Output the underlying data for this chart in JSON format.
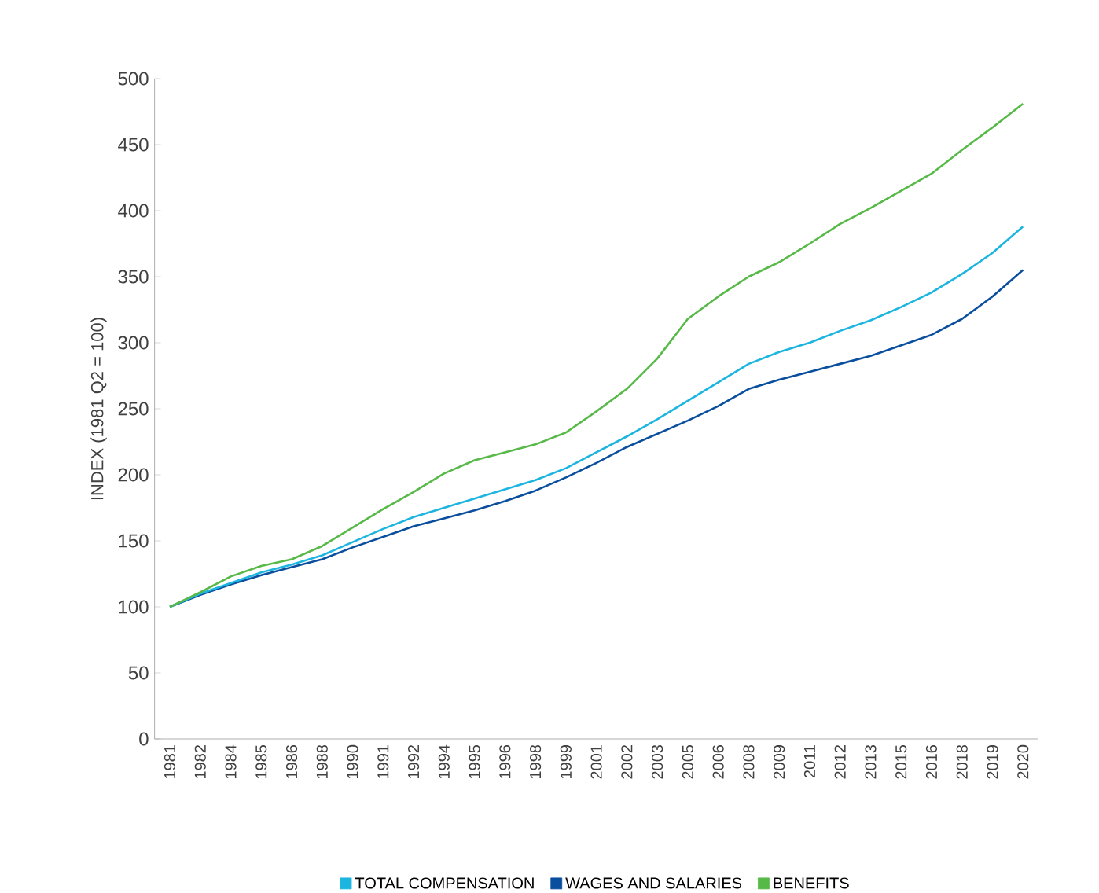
{
  "chart_data": {
    "type": "line",
    "ylabel": "INDEX (1981 Q2 = 100)",
    "categories": [
      "1981",
      "1982",
      "1984",
      "1985",
      "1986",
      "1988",
      "1990",
      "1991",
      "1992",
      "1994",
      "1995",
      "1996",
      "1998",
      "1999",
      "2001",
      "2002",
      "2003",
      "2005",
      "2006",
      "2008",
      "2009",
      "2011",
      "2012",
      "2013",
      "2015",
      "2016",
      "2018",
      "2019",
      "2020"
    ],
    "series": [
      {
        "name": "TOTAL COMPENSATION",
        "color": "#1cb5e0",
        "values": [
          100,
          110,
          118,
          126,
          132,
          139,
          149,
          159,
          168,
          175,
          182,
          189,
          196,
          205,
          217,
          229,
          242,
          256,
          270,
          284,
          293,
          300,
          309,
          317,
          327,
          338,
          352,
          368,
          388
        ]
      },
      {
        "name": "WAGES AND SALARIES",
        "color": "#0a4f9e",
        "values": [
          100,
          109,
          117,
          124,
          130,
          136,
          145,
          153,
          161,
          167,
          173,
          180,
          188,
          198,
          209,
          221,
          231,
          241,
          252,
          265,
          272,
          278,
          284,
          290,
          298,
          306,
          318,
          335,
          355
        ]
      },
      {
        "name": "BENEFITS",
        "color": "#57b947",
        "values": [
          100,
          111,
          123,
          131,
          136,
          146,
          160,
          174,
          187,
          201,
          211,
          217,
          223,
          232,
          248,
          265,
          288,
          318,
          335,
          350,
          361,
          375,
          390,
          402,
          415,
          428,
          446,
          463,
          481
        ]
      }
    ],
    "ylim": [
      0,
      500
    ],
    "yticks": [
      0,
      50,
      100,
      150,
      200,
      250,
      300,
      350,
      400,
      450,
      500
    ],
    "legend": "bottom",
    "grid": false,
    "marker": "none",
    "line_style": "solid"
  }
}
